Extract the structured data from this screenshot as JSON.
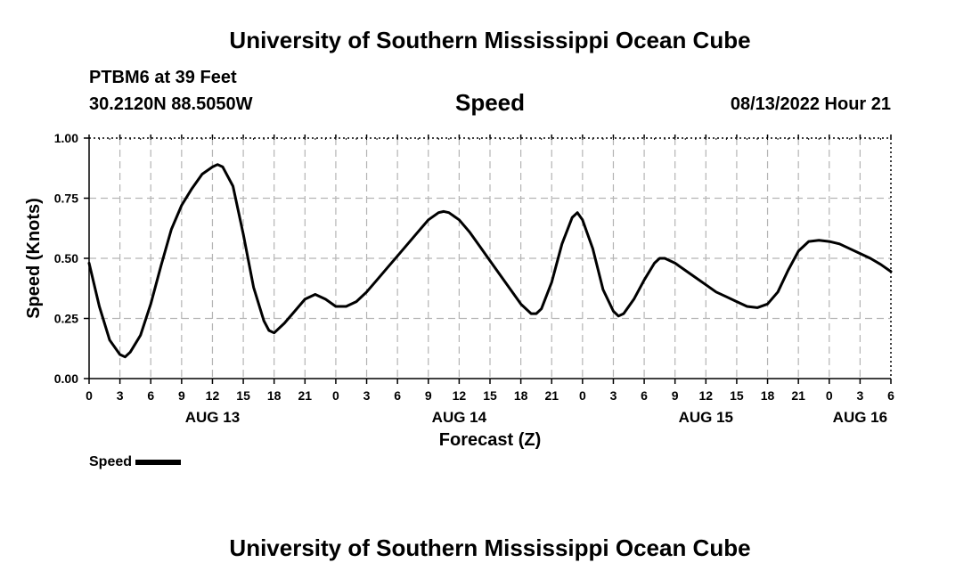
{
  "header": {
    "title": "University of Southern Mississippi Ocean Cube",
    "station": "PTBM6 at 39 Feet",
    "coords": "30.2120N  88.5050W",
    "chart_title": "Speed",
    "date": "08/13/2022 Hour 21"
  },
  "footer": {
    "title": "University of Southern Mississippi Ocean Cube"
  },
  "legend": {
    "label": "Speed"
  },
  "colors": {
    "line": "#000000",
    "grid": "#b4b4b4",
    "background": "#ffffff"
  },
  "chart_data": {
    "type": "line",
    "title": "Speed",
    "xlabel": "Forecast (Z)",
    "ylabel": "Speed (Knots)",
    "xlim": [
      0,
      78
    ],
    "ylim": [
      0,
      1
    ],
    "yticks": [
      0,
      0.25,
      0.5,
      0.75,
      1
    ],
    "ytick_labels": [
      "0.00",
      "0.25",
      "0.50",
      "0.75",
      "1.00"
    ],
    "xticks": [
      0,
      3,
      6,
      9,
      12,
      15,
      18,
      21,
      24,
      27,
      30,
      33,
      36,
      39,
      42,
      45,
      48,
      51,
      54,
      57,
      60,
      63,
      66,
      69,
      72,
      75,
      78
    ],
    "xtick_labels": [
      "0",
      "3",
      "6",
      "9",
      "12",
      "15",
      "18",
      "21",
      "0",
      "3",
      "6",
      "9",
      "12",
      "15",
      "18",
      "21",
      "0",
      "3",
      "6",
      "9",
      "12",
      "15",
      "18",
      "21",
      "0",
      "3",
      "6"
    ],
    "day_labels": [
      {
        "x": 12,
        "label": "AUG 13"
      },
      {
        "x": 36,
        "label": "AUG 14"
      },
      {
        "x": 60,
        "label": "AUG 15"
      },
      {
        "x": 75,
        "label": "AUG 16"
      }
    ],
    "grid": true,
    "series": [
      {
        "name": "Speed",
        "x": [
          0,
          1,
          2,
          3,
          3.5,
          4,
          5,
          6,
          7,
          8,
          9,
          10,
          11,
          12,
          12.5,
          13,
          14,
          15,
          16,
          17,
          17.5,
          18,
          19,
          20,
          21,
          22,
          23,
          24,
          25,
          26,
          27,
          28,
          29,
          30,
          31,
          32,
          33,
          34,
          34.5,
          35,
          36,
          37,
          38,
          39,
          40,
          41,
          42,
          43,
          43.5,
          44,
          45,
          46,
          47,
          47.5,
          48,
          49,
          50,
          51,
          51.5,
          52,
          53,
          54,
          55,
          55.5,
          56,
          57,
          58,
          59,
          60,
          61,
          62,
          63,
          64,
          65,
          66,
          67,
          68,
          69,
          70,
          71,
          72,
          73,
          74,
          75,
          76,
          77,
          78
        ],
        "values": [
          0.48,
          0.3,
          0.16,
          0.1,
          0.09,
          0.11,
          0.18,
          0.31,
          0.47,
          0.62,
          0.72,
          0.79,
          0.85,
          0.88,
          0.89,
          0.88,
          0.8,
          0.6,
          0.38,
          0.24,
          0.2,
          0.19,
          0.23,
          0.28,
          0.33,
          0.35,
          0.33,
          0.3,
          0.3,
          0.32,
          0.36,
          0.41,
          0.46,
          0.51,
          0.56,
          0.61,
          0.66,
          0.69,
          0.695,
          0.69,
          0.66,
          0.61,
          0.55,
          0.49,
          0.43,
          0.37,
          0.31,
          0.27,
          0.27,
          0.29,
          0.4,
          0.56,
          0.67,
          0.69,
          0.66,
          0.54,
          0.37,
          0.28,
          0.26,
          0.27,
          0.33,
          0.41,
          0.48,
          0.5,
          0.5,
          0.48,
          0.45,
          0.42,
          0.39,
          0.36,
          0.34,
          0.32,
          0.3,
          0.295,
          0.31,
          0.36,
          0.45,
          0.53,
          0.57,
          0.575,
          0.57,
          0.56,
          0.54,
          0.52,
          0.5,
          0.475,
          0.445
        ]
      }
    ]
  }
}
